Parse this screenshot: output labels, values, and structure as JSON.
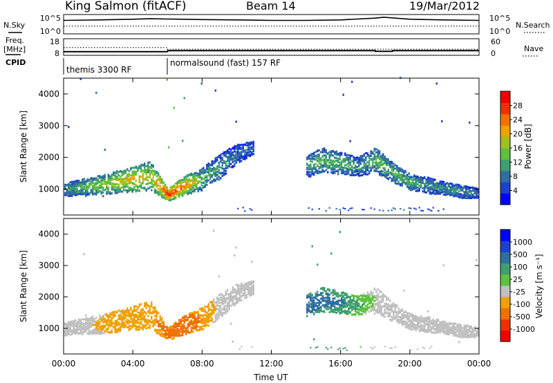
{
  "header": {
    "title": "King Salmon (fitACF)",
    "beam": "Beam 14",
    "date": "19/Mar/2012"
  },
  "noise_panel": {
    "left_label": "N.Sky",
    "right_label": "N.Search",
    "left_ticks": [
      "10^5",
      "10^0"
    ],
    "right_ticks": [
      "10^5",
      "10^0"
    ]
  },
  "freq_panel": {
    "left_label_1": "Freq.",
    "left_label_2": "[MHz]",
    "right_label": "Nave",
    "left_ticks": [
      "18",
      "8"
    ],
    "right_ticks": [
      "60",
      "0"
    ]
  },
  "cpid_panel": {
    "label": "CPID",
    "programs": [
      {
        "name": "themis 3300 RF",
        "start_hour": 0
      },
      {
        "name": "normalsound (fast) 157 RF",
        "start_hour": 6
      }
    ]
  },
  "x_axis": {
    "label": "Time UT",
    "ticks": [
      "00:00",
      "04:00",
      "08:00",
      "12:00",
      "16:00",
      "20:00",
      "00:00"
    ],
    "range_hours": [
      0,
      24
    ]
  },
  "power_panel": {
    "ylabel": "Slant Range [km]",
    "yticks": [
      "1000",
      "2000",
      "3000",
      "4000"
    ],
    "colorbar_title": "Power [dB]",
    "colorbar_ticks": [
      "4",
      "8",
      "12",
      "16",
      "20",
      "24",
      "28"
    ],
    "colors": [
      "#0000ff",
      "#1f3fcf",
      "#2f6fa0",
      "#3f9f6f",
      "#60c040",
      "#a0c020",
      "#f0a000",
      "#f07000",
      "#f03000",
      "#f00000"
    ]
  },
  "velocity_panel": {
    "ylabel": "Slant Range [km]",
    "yticks": [
      "1000",
      "2000",
      "3000",
      "4000"
    ],
    "colorbar_title": "Velocity [m s⁻¹]",
    "colorbar_ticks": [
      "1000",
      "500",
      "100",
      "25",
      "-25",
      "-100",
      "-500",
      "-1000"
    ],
    "colors": [
      "#0000ff",
      "#1f3fcf",
      "#2f6fa0",
      "#3f9f6f",
      "#60c040",
      "#c0c0c0",
      "#f0a000",
      "#f07000",
      "#f03000",
      "#f00000"
    ]
  },
  "chart_data": [
    {
      "type": "line",
      "title": "N.Sky / N.Search",
      "x": [
        0,
        2,
        4,
        5,
        6,
        8,
        10,
        12,
        14,
        16,
        18,
        18.5,
        20,
        22,
        24
      ],
      "series": [
        {
          "values": [
            3000,
            4000,
            6000,
            8000,
            7000,
            5000,
            4000,
            3000,
            3000,
            4000,
            12000,
            20000,
            6000,
            4000,
            3000
          ]
        },
        {
          "values": [
            100,
            100,
            100,
            100,
            100,
            100,
            100,
            100,
            100,
            100,
            100,
            100,
            100,
            100,
            100
          ]
        }
      ],
      "ylim": [
        1,
        100000
      ]
    },
    {
      "type": "line",
      "title": "Freq. / Nave",
      "x": [
        0,
        6,
        6.01,
        12,
        18,
        18.01,
        19,
        19.01,
        24
      ],
      "series": [
        {
          "values": [
            10.2,
            10.2,
            10.8,
            10.8,
            10.8,
            10.4,
            10.4,
            10.8,
            10.8
          ]
        },
        {
          "values": [
            28,
            28,
            22,
            22,
            22,
            22,
            22,
            22,
            22
          ]
        }
      ]
    },
    {
      "type": "heatmap",
      "title": "Power [dB]",
      "x": [
        0,
        1,
        2,
        3,
        4,
        5,
        6,
        7,
        8,
        9,
        10,
        11,
        12,
        13,
        14,
        15,
        16,
        17,
        18,
        19,
        20,
        21,
        22,
        23,
        24
      ],
      "echo_center_km": [
        950,
        1050,
        1100,
        1200,
        1300,
        1400,
        800,
        1100,
        1300,
        1700,
        2100,
        2300,
        null,
        null,
        1700,
        1900,
        1800,
        1700,
        1900,
        1500,
        1200,
        1100,
        1000,
        900,
        850
      ],
      "echo_halfwidth_km": [
        200,
        250,
        300,
        350,
        400,
        450,
        200,
        300,
        350,
        400,
        300,
        200,
        null,
        null,
        350,
        400,
        350,
        300,
        400,
        300,
        250,
        250,
        200,
        200,
        150
      ],
      "power_db": [
        8,
        10,
        12,
        14,
        16,
        14,
        22,
        18,
        10,
        8,
        6,
        6,
        null,
        null,
        8,
        10,
        10,
        8,
        10,
        10,
        10,
        8,
        8,
        8,
        6
      ],
      "ylim": [
        180,
        4500
      ],
      "clim": [
        0,
        30
      ]
    },
    {
      "type": "heatmap",
      "title": "Velocity [m s⁻¹]",
      "x": [
        0,
        1,
        2,
        3,
        4,
        5,
        6,
        7,
        8,
        9,
        10,
        11,
        12,
        13,
        14,
        15,
        16,
        17,
        18,
        19,
        20,
        21,
        22,
        23,
        24
      ],
      "echo_center_km": [
        950,
        1050,
        1100,
        1200,
        1300,
        1400,
        800,
        1100,
        1300,
        1700,
        2100,
        2300,
        null,
        null,
        1700,
        1900,
        1800,
        1700,
        1900,
        1500,
        1200,
        1100,
        1000,
        900,
        850
      ],
      "echo_halfwidth_km": [
        200,
        250,
        300,
        350,
        400,
        450,
        200,
        300,
        350,
        400,
        300,
        200,
        null,
        null,
        350,
        400,
        350,
        300,
        400,
        300,
        250,
        250,
        200,
        200,
        150
      ],
      "velocity_ms": [
        0,
        0,
        -30,
        -60,
        -80,
        -50,
        -150,
        -200,
        -80,
        0,
        0,
        0,
        null,
        null,
        150,
        120,
        100,
        50,
        20,
        0,
        0,
        0,
        0,
        0,
        0
      ],
      "ylim": [
        180,
        4500
      ],
      "clim": [
        -1000,
        1000
      ]
    }
  ]
}
